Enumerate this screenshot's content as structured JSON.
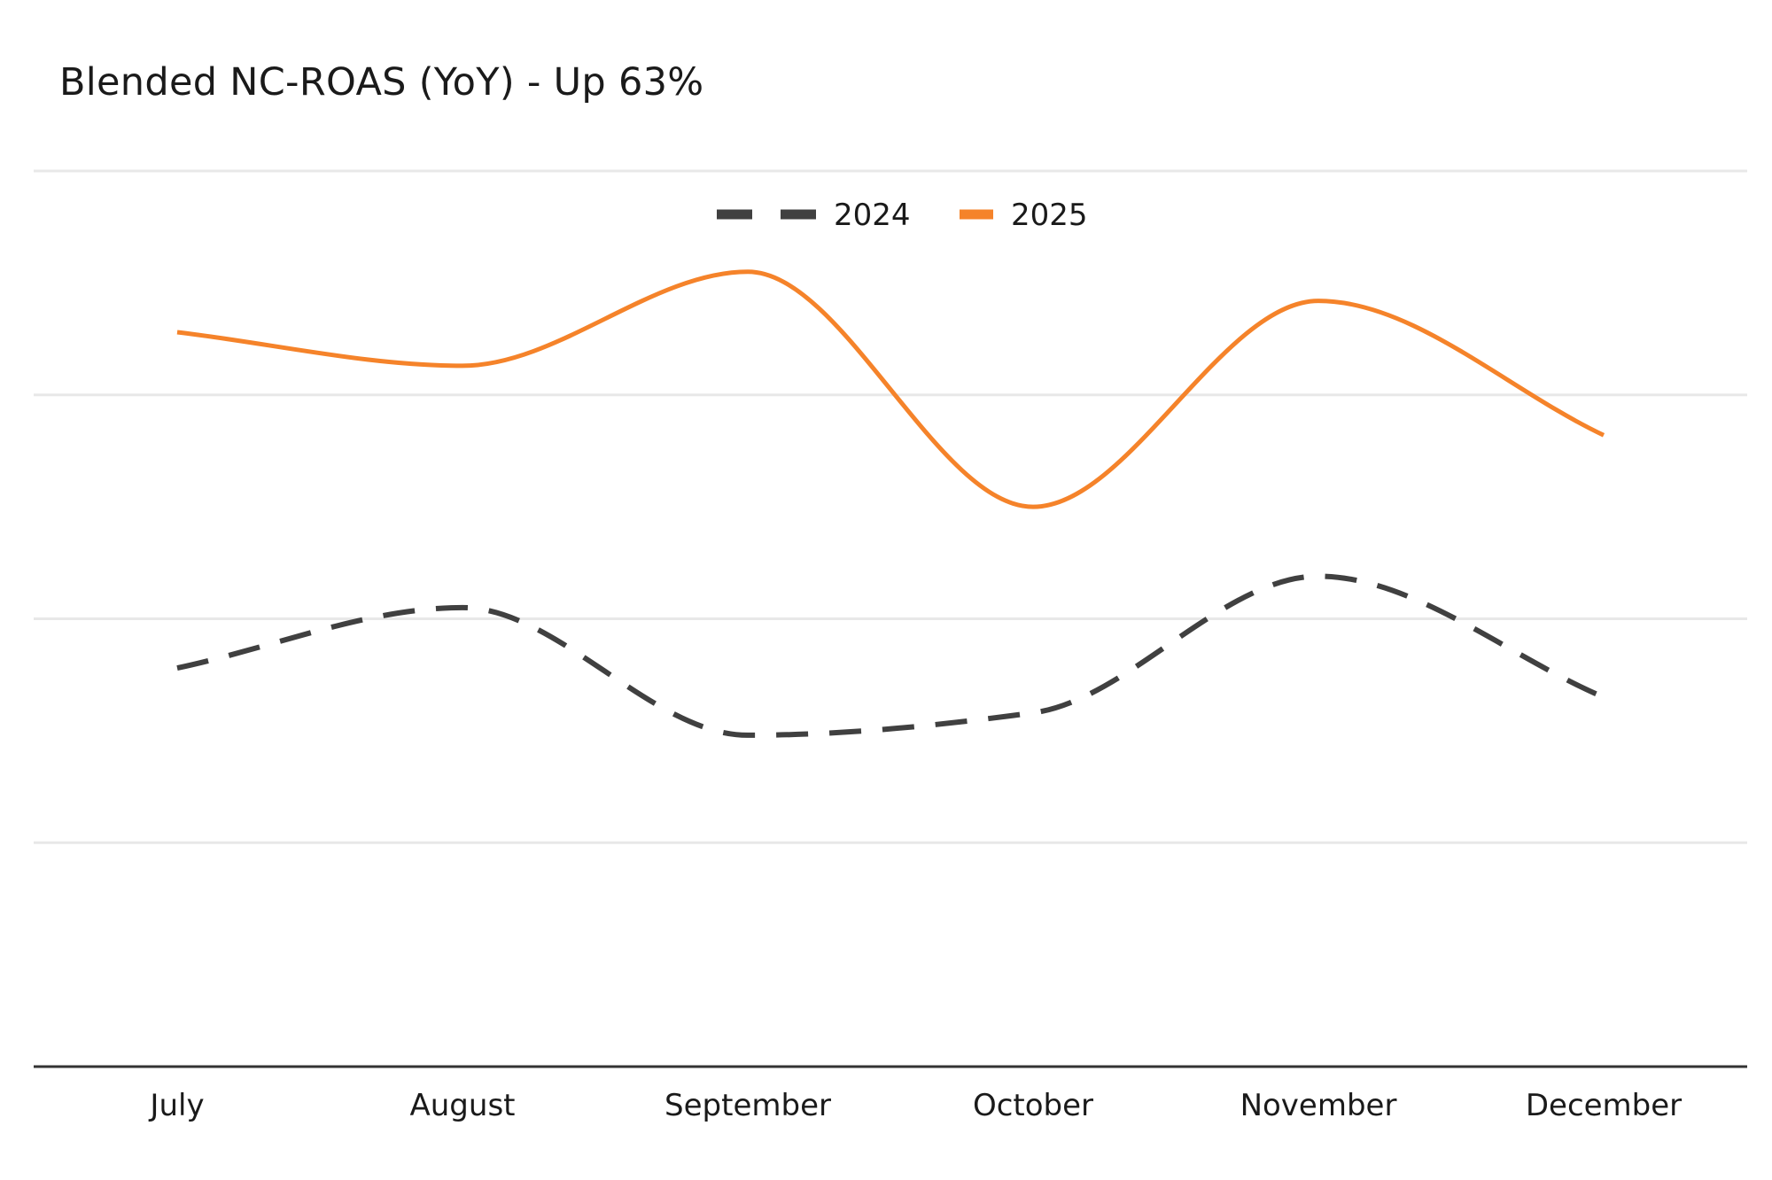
{
  "chart_data": {
    "type": "line",
    "title": "Blended NC-ROAS (YoY) - Up 63%",
    "categories": [
      "July",
      "August",
      "September",
      "October",
      "November",
      "December"
    ],
    "series": [
      {
        "name": "2024",
        "values": [
          1.78,
          2.05,
          1.48,
          1.58,
          2.19,
          1.65
        ],
        "color": "#404040",
        "dash": true
      },
      {
        "name": "2025",
        "values": [
          3.28,
          3.13,
          3.55,
          2.5,
          3.42,
          2.82
        ],
        "color": "#f5832a",
        "dash": false
      }
    ],
    "ylim": [
      0,
      4
    ],
    "yticks": [
      0,
      1,
      2,
      3,
      4
    ],
    "show_y_tick_labels": false,
    "grid": true,
    "legend": "top-center",
    "xlabel": "",
    "ylabel": ""
  }
}
